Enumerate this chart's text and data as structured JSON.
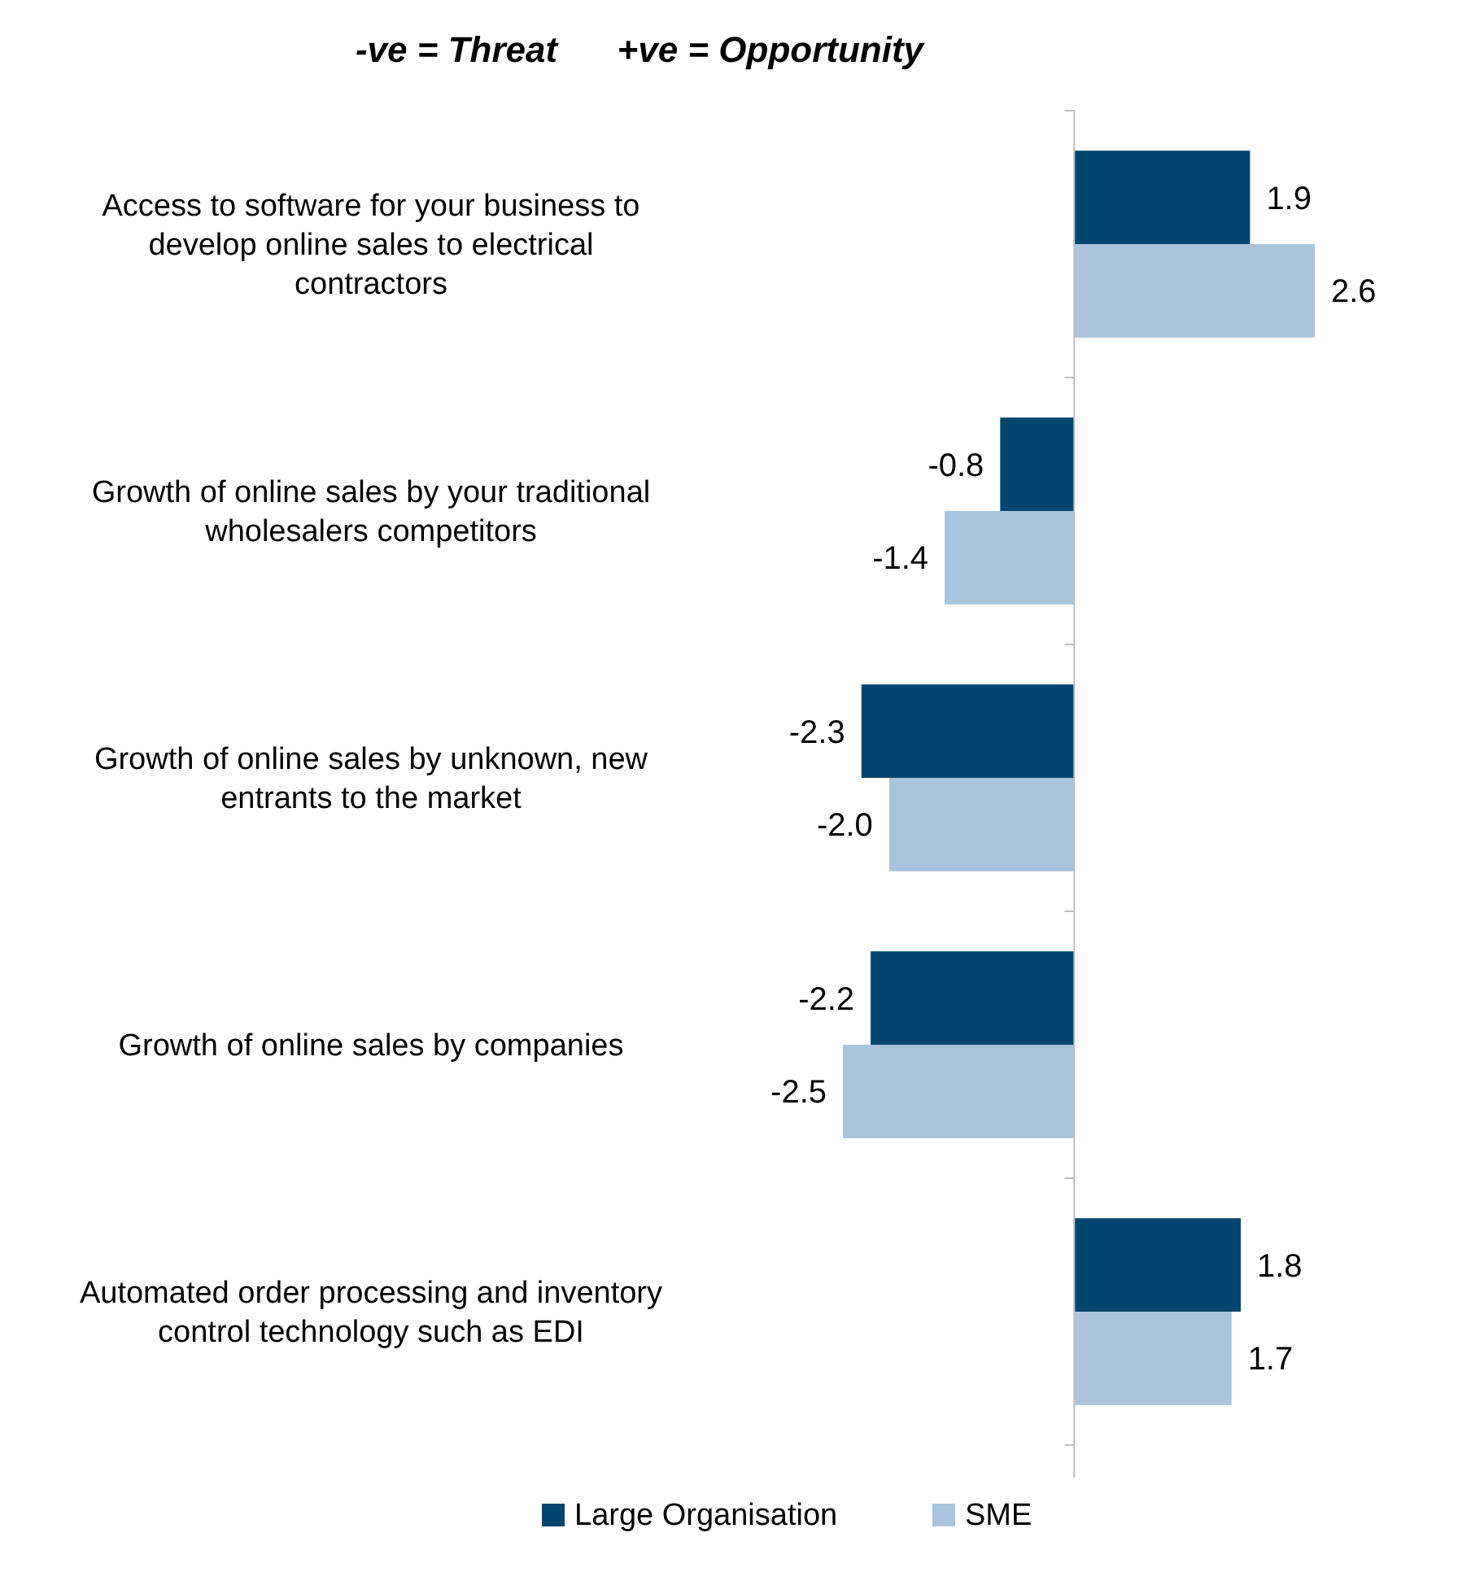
{
  "chart_data": {
    "type": "bar",
    "orientation": "horizontal",
    "title": "-ve = Threat      +ve = Opportunity",
    "categories": [
      "Access to software for your business to develop online sales to electrical contractors",
      "Growth of online sales by your traditional wholesalers competitors",
      "Growth of online sales by unknown, new entrants to the market",
      "Growth of online sales by companies",
      "Automated order processing and inventory control technology such as EDI"
    ],
    "series": [
      {
        "name": "Large Organisation",
        "color": "#00456e",
        "values": [
          1.9,
          -0.8,
          -2.3,
          -2.2,
          1.8
        ],
        "value_labels": [
          "1.9",
          "-0.8",
          "-2.3",
          "-2.2",
          "1.8"
        ]
      },
      {
        "name": "SME",
        "color": "#a9c4dc",
        "values": [
          2.6,
          -1.4,
          -2.0,
          -2.5,
          1.7
        ],
        "value_labels": [
          "2.6",
          "-1.4",
          "-2.0",
          "-2.5",
          "1.7"
        ]
      }
    ],
    "legend": "bottom"
  }
}
